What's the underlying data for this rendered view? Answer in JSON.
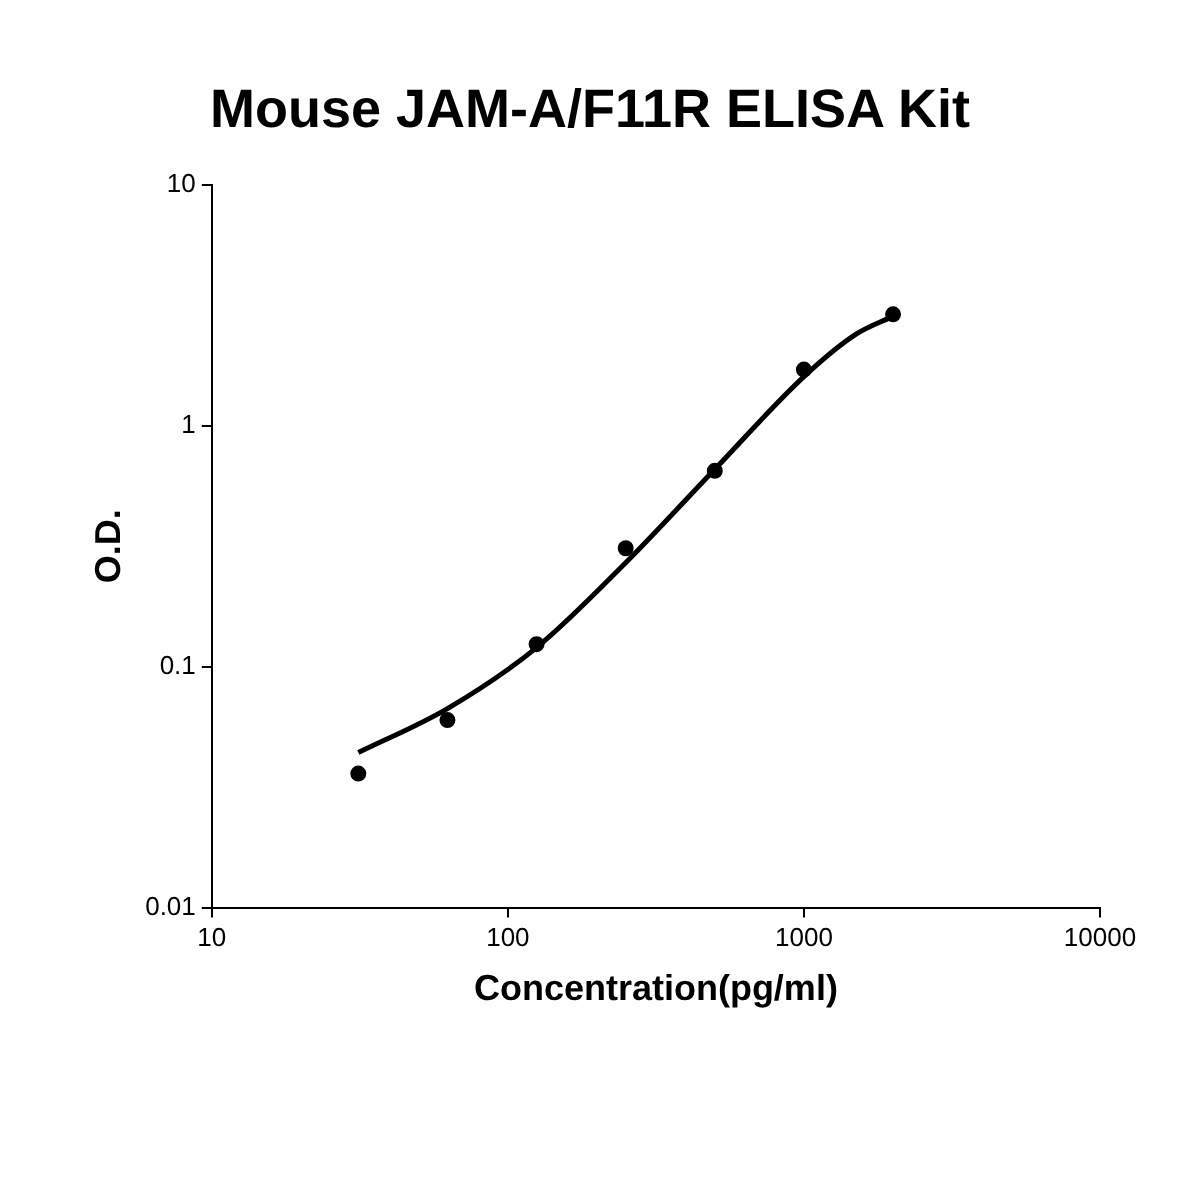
{
  "chart_data": {
    "type": "scatter",
    "title": "Mouse JAM-A/F11R ELISA Kit",
    "xlabel": "Concentration(pg/ml)",
    "ylabel": "O.D.",
    "log": "xy",
    "grid": false,
    "xlim": [
      10,
      10000
    ],
    "xticks": [
      10,
      100,
      1000,
      10000
    ],
    "ylim": [
      0.01,
      10
    ],
    "yticks": [
      0.01,
      0.1,
      1,
      10
    ],
    "series": [
      {
        "marker": "circle",
        "color": "#000000",
        "x": [
          31.25,
          62.5,
          125,
          250,
          500,
          1000,
          2000
        ],
        "values": [
          0.036,
          0.06,
          0.124,
          0.31,
          0.65,
          1.71,
          2.9
        ]
      },
      {
        "type": "line",
        "marker": "none",
        "line_style": "solid",
        "color": "#000000",
        "x": [
          31.25,
          62.5,
          125,
          250,
          500,
          1000,
          1500,
          2000
        ],
        "values": [
          0.044,
          0.067,
          0.12,
          0.27,
          0.66,
          1.6,
          2.4,
          2.85
        ]
      }
    ]
  }
}
